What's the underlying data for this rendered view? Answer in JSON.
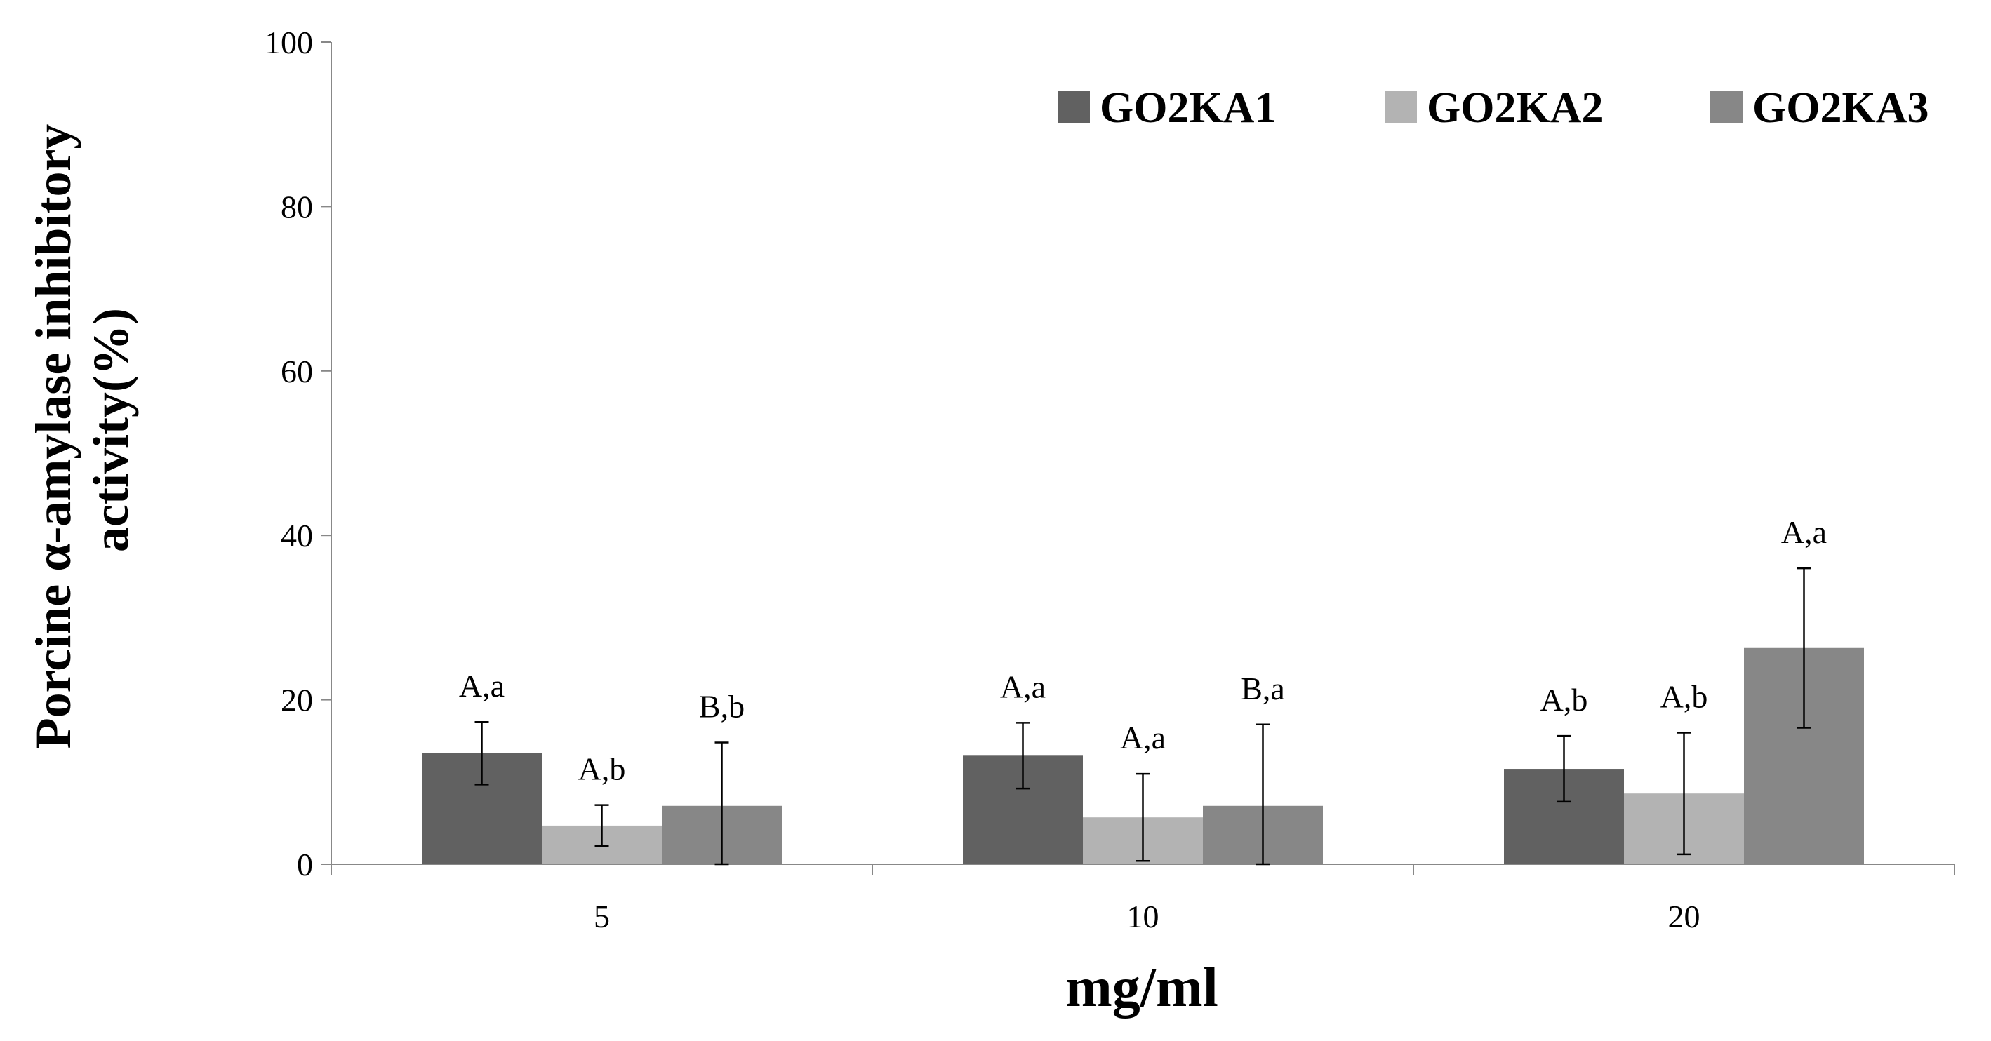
{
  "chart_data": {
    "type": "bar",
    "title": "",
    "xlabel": "mg/ml",
    "ylabel_lines": [
      "Porcine α-amylase inhibitory",
      "activity(%)"
    ],
    "ylim": [
      0,
      100
    ],
    "yticks": [
      0,
      20,
      40,
      60,
      80,
      100
    ],
    "grid": false,
    "legend_position": "top-right",
    "categories": [
      "5",
      "10",
      "20"
    ],
    "series": [
      {
        "name": "GO2KA1",
        "color": "#616161",
        "values": [
          13.5,
          13.2,
          11.6
        ],
        "errors": [
          3.8,
          4.0,
          4.0
        ],
        "labels": [
          "A,a",
          "A,a",
          "A,b"
        ]
      },
      {
        "name": "GO2KA2",
        "color": "#b3b3b3",
        "values": [
          4.7,
          5.7,
          8.6
        ],
        "errors": [
          2.5,
          5.3,
          7.4
        ],
        "labels": [
          "A,b",
          "A,a",
          "A,b"
        ]
      },
      {
        "name": "GO2KA3",
        "color": "#878787",
        "values": [
          7.1,
          7.1,
          26.3
        ],
        "errors": [
          7.7,
          9.9,
          9.7
        ],
        "labels": [
          "B,b",
          "B,a",
          "A,a"
        ]
      }
    ]
  }
}
